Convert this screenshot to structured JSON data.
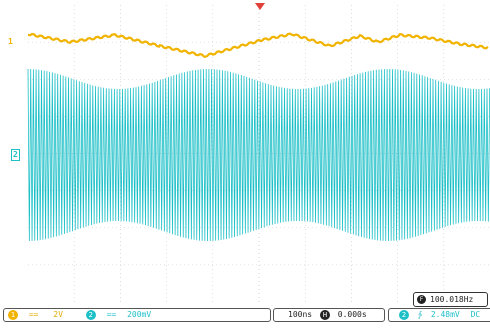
{
  "channels": {
    "ch1": {
      "badge": "1",
      "marker": "1",
      "coupling": "==",
      "scale": "2V",
      "color": "#f0b400"
    },
    "ch2": {
      "badge": "2",
      "marker": "2",
      "coupling": "==",
      "scale": "200mV",
      "color": "#1ec0c8"
    }
  },
  "timebase": {
    "scale": "100ns",
    "icon": "H",
    "delay": "0.000s"
  },
  "frequency": {
    "icon": "F",
    "value": "100.018Hz"
  },
  "measurement": {
    "badge": "2",
    "symbol": "∱",
    "value": "2.48mV",
    "extra": "DC"
  },
  "trigger_marker_color": "#e0403a",
  "grid_color": "#c8c8c8"
}
